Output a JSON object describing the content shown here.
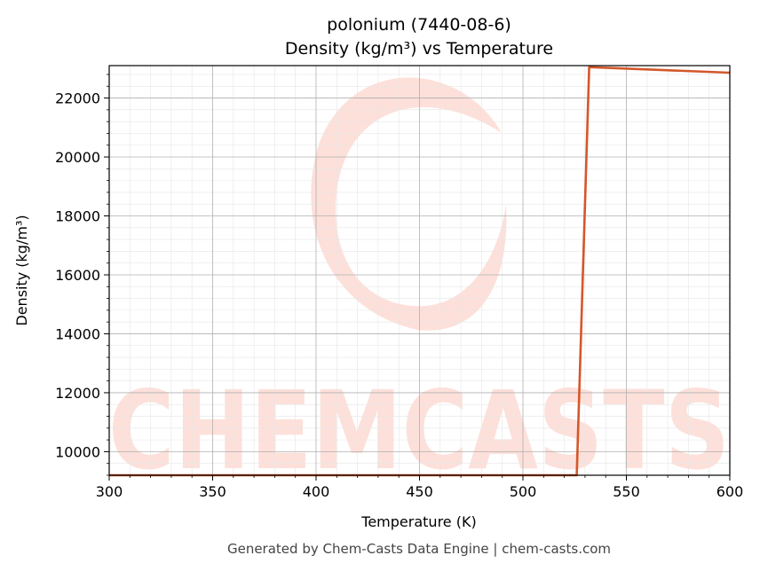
{
  "chart_data": {
    "type": "line",
    "title": "polonium (7440-08-6)",
    "subtitle": "Density (kg/m³) vs Temperature",
    "xlabel": "Temperature (K)",
    "ylabel": "Density (kg/m³)",
    "xlim": [
      300,
      600
    ],
    "ylim": [
      9200,
      23100
    ],
    "xticks": [
      300,
      350,
      400,
      450,
      500,
      550,
      600
    ],
    "yticks": [
      10000,
      12000,
      14000,
      16000,
      18000,
      20000,
      22000
    ],
    "grid": true,
    "line_color": "#d4572a",
    "series": [
      {
        "x": [
          300,
          526,
          532,
          600
        ],
        "y": [
          9200,
          9200,
          23050,
          22860
        ]
      }
    ],
    "watermark": "CHEMCASTS"
  },
  "footer": "Generated by Chem-Casts Data Engine | chem-casts.com"
}
